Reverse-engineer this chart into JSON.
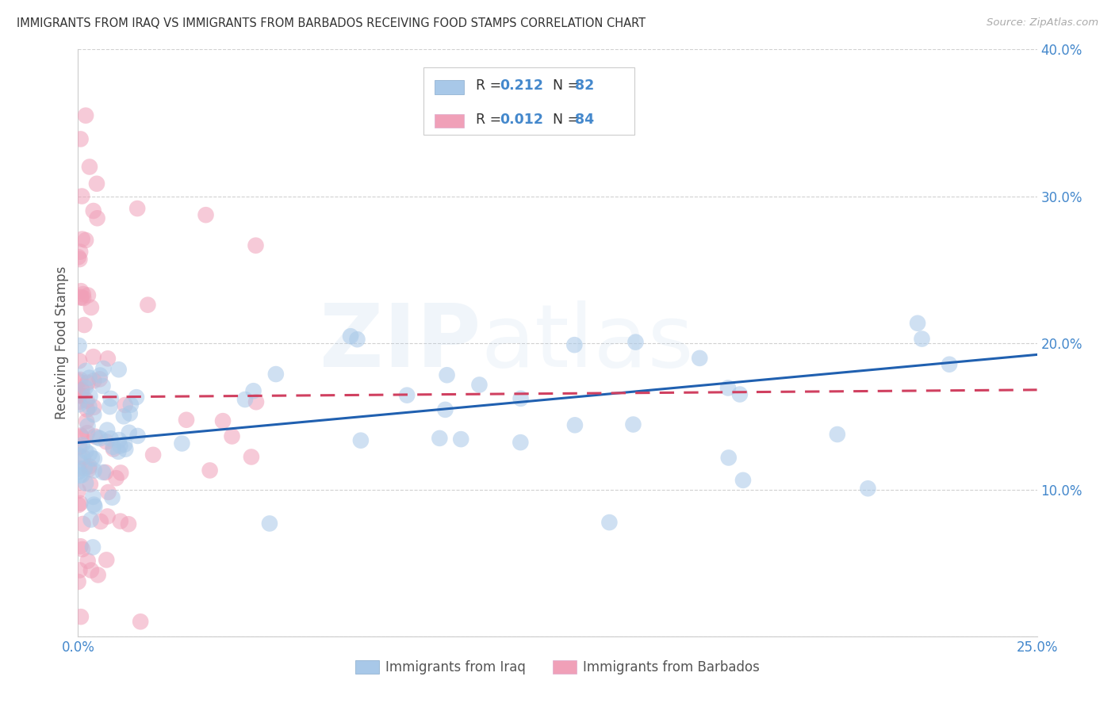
{
  "title": "IMMIGRANTS FROM IRAQ VS IMMIGRANTS FROM BARBADOS RECEIVING FOOD STAMPS CORRELATION CHART",
  "source": "Source: ZipAtlas.com",
  "ylabel": "Receiving Food Stamps",
  "legend_iraq_label": "Immigrants from Iraq",
  "legend_barbados_label": "Immigrants from Barbados",
  "R_iraq": 0.212,
  "N_iraq": 82,
  "R_barbados": 0.012,
  "N_barbados": 84,
  "xlim": [
    0.0,
    0.25
  ],
  "ylim": [
    0.0,
    0.4
  ],
  "color_iraq": "#a8c8e8",
  "color_barbados": "#f0a0b8",
  "color_iraq_line": "#2060b0",
  "color_barbados_line": "#d04060",
  "color_text_blue": "#4488cc",
  "watermark_color": "#b0cce8",
  "watermark_alpha": 0.18,
  "iraq_line_x0": 0.0,
  "iraq_line_y0": 0.132,
  "iraq_line_x1": 0.25,
  "iraq_line_y1": 0.192,
  "barb_line_x0": 0.0,
  "barb_line_y0": 0.163,
  "barb_line_x1": 0.25,
  "barb_line_y1": 0.168
}
